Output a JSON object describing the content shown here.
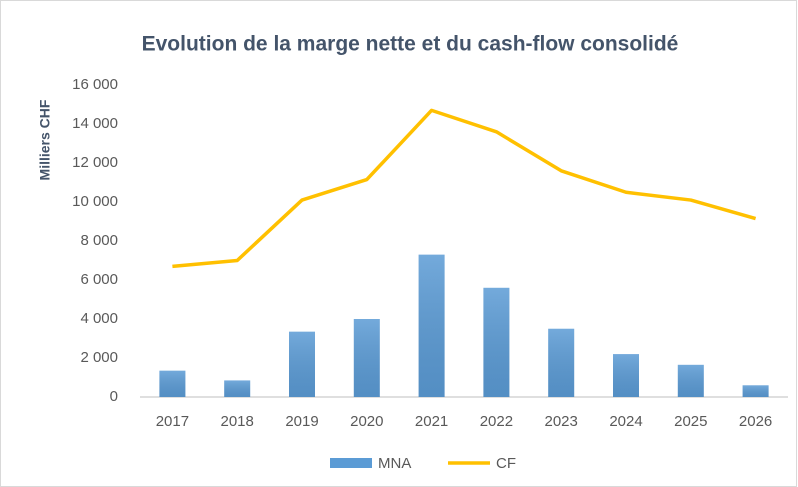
{
  "chart_data": {
    "type": "bar",
    "title": "Evolution de la marge nette et du cash-flow consolidé",
    "y_label": "Milliers CHF",
    "categories": [
      "2017",
      "2018",
      "2019",
      "2020",
      "2021",
      "2022",
      "2023",
      "2024",
      "2025",
      "2026"
    ],
    "series": [
      {
        "name": "MNA",
        "type": "bar",
        "color": "#5b9bd5",
        "values": [
          1350,
          850,
          3350,
          4000,
          7300,
          5600,
          3500,
          2200,
          1650,
          600
        ]
      },
      {
        "name": "CF",
        "type": "line",
        "color": "#ffc000",
        "values": [
          6700,
          7000,
          10100,
          11150,
          14700,
          13600,
          11600,
          10500,
          10100,
          9150
        ]
      }
    ],
    "ylim": [
      0,
      16000
    ],
    "yticks": [
      0,
      {
        "value": 2000,
        "label": "2 000"
      },
      {
        "value": 4000,
        "label": "4 000"
      },
      {
        "value": 6000,
        "label": "6 000"
      },
      {
        "value": 8000,
        "label": "8 000"
      },
      {
        "value": 10000,
        "label": "10 000"
      },
      {
        "value": 12000,
        "label": "12 000"
      },
      {
        "value": 14000,
        "label": "14 000"
      },
      {
        "value": 16000,
        "label": "16 000"
      }
    ],
    "grid": false,
    "legend": "bottom"
  }
}
